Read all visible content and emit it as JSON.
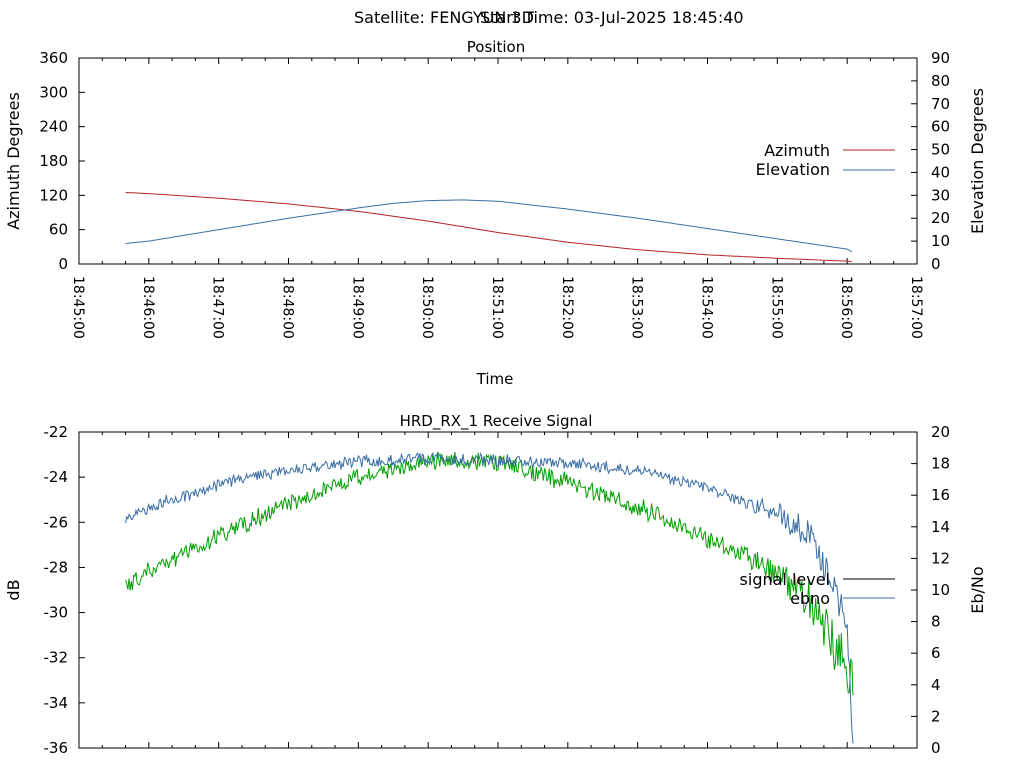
{
  "header": {
    "satellite": "Satellite: FENGYUN 3D",
    "start_time": "Start Time: 03-Jul-2025 18:45:40"
  },
  "chart_data": [
    {
      "type": "line",
      "title": "Position",
      "xlabel": "Time",
      "ylabel": "Azimuth Degrees",
      "y2label": "Elevation Degrees",
      "xlim": [
        "18:45:00",
        "18:57:00"
      ],
      "ylim": [
        0,
        360
      ],
      "y2lim": [
        0,
        90
      ],
      "grid": false,
      "legend_position": "right",
      "x_ticks": [
        "18:45:00",
        "18:46:00",
        "18:47:00",
        "18:48:00",
        "18:49:00",
        "18:50:00",
        "18:51:00",
        "18:52:00",
        "18:53:00",
        "18:54:00",
        "18:55:00",
        "18:56:00",
        "18:57:00"
      ],
      "y_ticks": [
        "0",
        "60",
        "120",
        "180",
        "240",
        "300",
        "360"
      ],
      "y2_ticks": [
        "0",
        "10",
        "20",
        "30",
        "40",
        "50",
        "60",
        "70",
        "80",
        "90"
      ],
      "series": [
        {
          "name": "Azimuth",
          "axis": "left",
          "color": "#b22222",
          "x": [
            "18:45:40",
            "18:46:00",
            "18:47:00",
            "18:48:00",
            "18:49:00",
            "18:50:00",
            "18:51:00",
            "18:52:00",
            "18:53:00",
            "18:54:00",
            "18:55:00",
            "18:56:00",
            "18:56:05"
          ],
          "values": [
            125,
            123,
            115,
            105,
            92,
            75,
            55,
            38,
            25,
            16,
            10,
            5,
            4
          ]
        },
        {
          "name": "Elevation",
          "axis": "right",
          "color": "#3a6ea5",
          "x": [
            "18:45:40",
            "18:46:00",
            "18:47:00",
            "18:48:00",
            "18:49:00",
            "18:49:30",
            "18:50:00",
            "18:50:30",
            "18:51:00",
            "18:52:00",
            "18:53:00",
            "18:54:00",
            "18:55:00",
            "18:56:00",
            "18:56:05"
          ],
          "values": [
            9,
            10,
            15,
            20,
            24.5,
            26.5,
            27.7,
            28,
            27.4,
            24,
            20,
            15.5,
            11,
            6.5,
            5
          ]
        }
      ]
    },
    {
      "type": "line",
      "title": "HRD_RX_1 Receive Signal",
      "xlabel": "",
      "ylabel": "dB",
      "y2label": "Eb/No",
      "xlim": [
        "18:45:00",
        "18:57:00"
      ],
      "ylim": [
        -36,
        -22
      ],
      "y2lim": [
        0,
        20
      ],
      "grid": false,
      "legend_position": "right",
      "y_ticks": [
        "-36",
        "-34",
        "-32",
        "-30",
        "-28",
        "-26",
        "-24",
        "-22"
      ],
      "y2_ticks": [
        "0",
        "2",
        "4",
        "6",
        "8",
        "10",
        "12",
        "14",
        "16",
        "18",
        "20"
      ],
      "series": [
        {
          "name": "signal level",
          "axis": "left",
          "color": "#00a000",
          "x": [
            "18:45:40",
            "18:46:00",
            "18:47:00",
            "18:48:00",
            "18:49:00",
            "18:50:00",
            "18:50:30",
            "18:51:00",
            "18:52:00",
            "18:53:00",
            "18:54:00",
            "18:55:00",
            "18:55:30",
            "18:56:00",
            "18:56:05"
          ],
          "values": [
            -28.8,
            -28.2,
            -26.6,
            -25.2,
            -24.0,
            -23.3,
            -23.2,
            -23.4,
            -24.2,
            -25.3,
            -26.7,
            -28.2,
            -29.6,
            -32.5,
            -33.2
          ]
        },
        {
          "name": "ebno",
          "axis": "right",
          "color": "#3a6ea5",
          "x": [
            "18:45:40",
            "18:46:00",
            "18:47:00",
            "18:48:00",
            "18:49:00",
            "18:50:00",
            "18:51:00",
            "18:52:00",
            "18:53:00",
            "18:54:00",
            "18:55:00",
            "18:55:30",
            "18:56:00",
            "18:56:05"
          ],
          "values": [
            14.5,
            15.2,
            16.7,
            17.6,
            18.1,
            18.3,
            18.2,
            18.0,
            17.6,
            16.5,
            14.8,
            13.3,
            8.0,
            0.3
          ]
        }
      ]
    }
  ]
}
